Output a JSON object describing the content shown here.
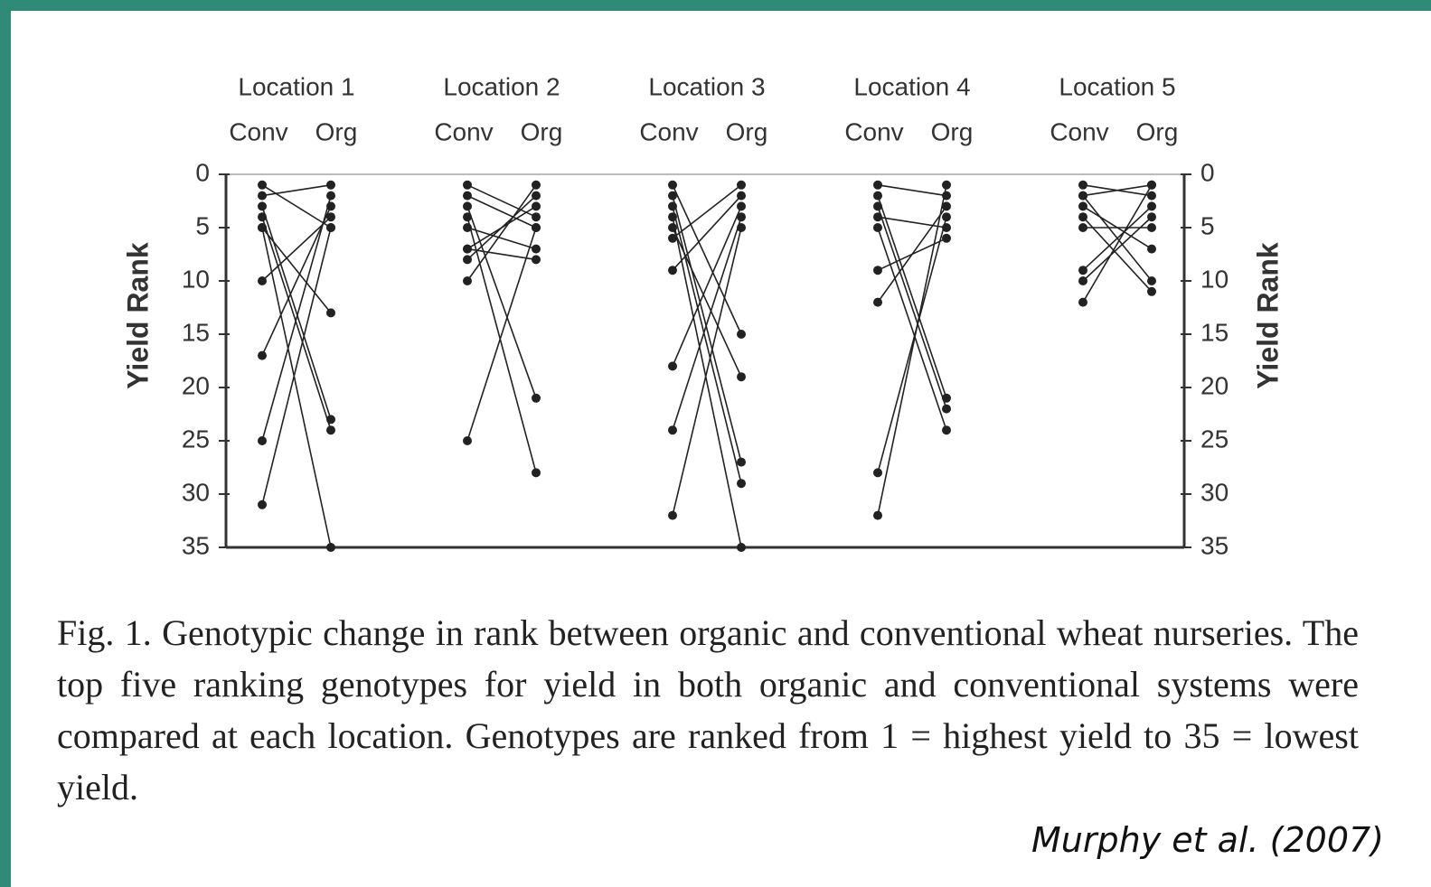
{
  "chart_data": {
    "type": "slope",
    "ylabel": "Yield Rank",
    "ylim": [
      0,
      35
    ],
    "yticks": [
      0,
      5,
      10,
      15,
      20,
      25,
      30,
      35
    ],
    "inverted": true,
    "color": "#222222",
    "locations": [
      {
        "name": "Location 1",
        "columns": [
          "Conv",
          "Org"
        ],
        "conv": [
          1,
          2,
          3,
          4,
          5,
          5,
          10,
          17,
          25,
          31
        ],
        "org": [
          5,
          1,
          23,
          24,
          35,
          13,
          4,
          3,
          2,
          5
        ]
      },
      {
        "name": "Location 2",
        "columns": [
          "Conv",
          "Org"
        ],
        "conv": [
          1,
          2,
          3,
          4,
          5,
          7,
          8,
          10,
          25,
          7
        ],
        "org": [
          4,
          5,
          21,
          28,
          7,
          3,
          2,
          1,
          5,
          8
        ]
      },
      {
        "name": "Location 3",
        "columns": [
          "Conv",
          "Org"
        ],
        "conv": [
          1,
          2,
          3,
          4,
          5,
          9,
          18,
          24,
          32,
          6
        ],
        "org": [
          15,
          27,
          29,
          35,
          19,
          2,
          3,
          4,
          5,
          1
        ]
      },
      {
        "name": "Location 4",
        "columns": [
          "Conv",
          "Org"
        ],
        "conv": [
          1,
          2,
          3,
          4,
          5,
          9,
          12,
          28,
          32
        ],
        "org": [
          2,
          21,
          22,
          5,
          24,
          6,
          3,
          4,
          1
        ]
      },
      {
        "name": "Location 5",
        "columns": [
          "Conv",
          "Org"
        ],
        "conv": [
          1,
          2,
          3,
          4,
          5,
          9,
          10,
          12,
          2
        ],
        "org": [
          2,
          10,
          7,
          11,
          5,
          3,
          4,
          1,
          1
        ]
      }
    ],
    "caption": "Fig. 1. Genotypic change in rank between organic and conventional wheat nurseries. The top five ranking genotypes for yield in both organic and conventional systems were compared at each location. Genotypes are ranked from 1 = highest yield to 35 = lowest yield.",
    "citation": "Murphy et al. (2007)"
  }
}
